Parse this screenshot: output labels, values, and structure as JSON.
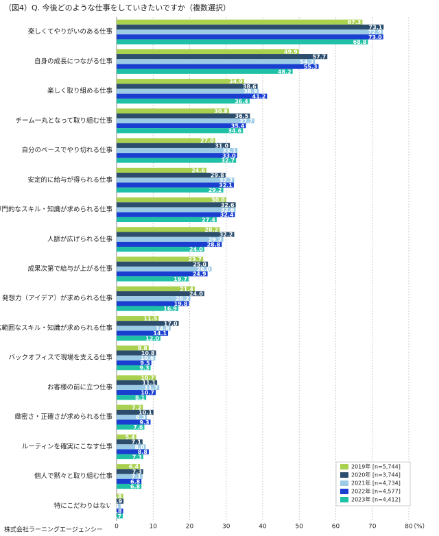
{
  "chart_data": {
    "type": "hbar",
    "title": "（図4）Q. 今後どのような仕事をしていきたいですか（複数選択）",
    "footer": "株式会社ラーニングエージェンシー",
    "x_label": "（%）",
    "categories": [
      "楽しくてやりがいのある仕事",
      "自身の成長につながる仕事",
      "楽しく取り組める仕事",
      "チーム一丸となって取り組む仕事",
      "自分のペースでやり切れる仕事",
      "安定的に給与が得られる仕事",
      "専門的なスキル・知識が求められる仕事",
      "人脈が広げられる仕事",
      "成果次第で給与が上がる仕事",
      "発想力（アイデア）が求められる仕事",
      "広範囲なスキル・知識が求められる仕事",
      "バックオフィスで現場を支える仕事",
      "お客様の前に立つ仕事",
      "緻密さ・正確さが求められる仕事",
      "ルーティンを確実にこなす仕事",
      "個人で黙々と取り組む仕事",
      "特にこだわりはない"
    ],
    "series": [
      {
        "name": "2019年 [n=5,744]",
        "color": "#a9d04e",
        "values": [
          67.3,
          49.9,
          34.9,
          30.8,
          27.0,
          24.6,
          30.0,
          28.2,
          23.7,
          21.4,
          11.5,
          8.8,
          10.7,
          7.2,
          5.4,
          6.4,
          1.8
        ],
        "value_labels": [
          "67.3",
          "49.9",
          "34.9",
          "30.8",
          "27.0",
          "24.6",
          "30.0",
          "28.2",
          "23.7",
          "21.4",
          "11.5",
          "8.8",
          "10.7",
          "7.2",
          "5.4",
          "6.4",
          "1.8"
        ]
      },
      {
        "name": "2020年 [n=3,744]",
        "color": "#2c4d6c",
        "values": [
          73.1,
          57.7,
          38.6,
          36.5,
          31.0,
          29.8,
          32.6,
          32.2,
          25.0,
          24.0,
          17.0,
          10.8,
          11.1,
          10.1,
          7.1,
          7.3,
          1.9
        ],
        "value_labels": [
          "73.1",
          "57.7",
          "38.6",
          "36.5",
          "31.0",
          "29.8",
          "32.6",
          "32.2",
          "25.0",
          "24.0",
          "17.0",
          "10.8",
          "11.1",
          "10.1",
          "7.1",
          "7.3",
          "1.9"
        ]
      },
      {
        "name": "2021年 [n=4,734]",
        "color": "#9ccbe6",
        "values": [
          72.9,
          54.3,
          38.9,
          37.7,
          33.1,
          32.2,
          32.6,
          29.2,
          26.0,
          20.2,
          14.8,
          10.6,
          11.7,
          8.3,
          8.0,
          7.1,
          1.1
        ],
        "value_labels": [
          "72.9",
          "54.3",
          "38.9",
          "37.7",
          "33.1",
          "32.2",
          "32.6",
          "29.2",
          "26.0",
          "20.2",
          "14.8",
          "10.6",
          "11.7",
          "8.3",
          "8.0",
          "7.1",
          "1.1"
        ]
      },
      {
        "name": "2022年 [n=4,577]",
        "color": "#1a3fd0",
        "values": [
          73.0,
          55.3,
          41.2,
          35.4,
          33.0,
          32.1,
          32.4,
          28.8,
          24.9,
          19.8,
          14.1,
          9.5,
          10.7,
          9.3,
          8.8,
          6.8,
          1.8
        ],
        "value_labels": [
          "73.0",
          "55.3",
          "41.2",
          "35.4",
          "33.0",
          "32.1",
          "32.4",
          "28.8",
          "24.9",
          "19.8",
          "14.1",
          "9.5",
          "10.7",
          "9.3",
          "8.8",
          "6.8",
          "1.8"
        ]
      },
      {
        "name": "2023年 [n=4,412]",
        "color": "#1fc0a6",
        "values": [
          68.8,
          48.2,
          36.4,
          34.6,
          32.7,
          29.2,
          27.4,
          24.0,
          19.7,
          16.9,
          12.0,
          9.3,
          8.1,
          7.6,
          7.3,
          6.8,
          1.7
        ],
        "value_labels": [
          "68.8",
          "48.2",
          "36.4",
          "34.6",
          "32.7",
          "29.2",
          "27.4",
          "24.0",
          "19.7",
          "16.9",
          "12.0",
          "9.3",
          "8.1",
          "7.6",
          "7.3",
          "6.8",
          "1.7"
        ]
      }
    ],
    "xlim": [
      0,
      80
    ],
    "xticks": [
      0,
      10,
      20,
      30,
      40,
      50,
      60,
      70,
      80
    ],
    "grid": true
  }
}
